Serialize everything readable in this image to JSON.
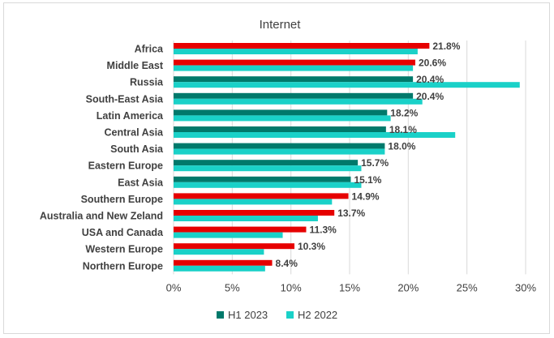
{
  "chart_data": {
    "type": "bar",
    "orientation": "horizontal",
    "title": "Internet",
    "categories": [
      "Africa",
      "Middle East",
      "Russia",
      "South-East Asia",
      "Latin America",
      "Central Asia",
      "South Asia",
      "Eastern Europe",
      "East Asia",
      "Southern Europe",
      "Australia and New Zeland",
      "USA and Canada",
      "Western Europe",
      "Northern Europe"
    ],
    "series": [
      {
        "name": "H1 2023",
        "values": [
          21.8,
          20.6,
          20.4,
          20.4,
          18.2,
          18.1,
          18.0,
          15.7,
          15.1,
          14.9,
          13.7,
          11.3,
          10.3,
          8.4
        ]
      },
      {
        "name": "H2 2022",
        "values": [
          20.8,
          20.4,
          29.5,
          21.2,
          18.5,
          24.0,
          18.0,
          16.0,
          16.0,
          13.5,
          12.3,
          9.3,
          7.7,
          7.8
        ]
      }
    ],
    "data_labels": [
      "21.8%",
      "20.6%",
      "20.4%",
      "20.4%",
      "18.2%",
      "18.1%",
      "18.0%",
      "15.7%",
      "15.1%",
      "14.9%",
      "13.7%",
      "11.3%",
      "10.3%",
      "8.4%"
    ],
    "xlim": [
      0,
      30
    ],
    "xticks": [
      "0%",
      "5%",
      "10%",
      "15%",
      "20%",
      "25%",
      "30%"
    ],
    "grid": "vertical",
    "legend": "bottom",
    "colors": {
      "h1_increase": "#e60000",
      "h1_decrease": "#00796b",
      "h2": "#1ad1c8",
      "grid": "#d9d9d9",
      "text": "#404040"
    },
    "h1_bar_color": [
      "red",
      "red",
      "teal",
      "teal",
      "teal",
      "teal",
      "teal",
      "teal",
      "teal",
      "red",
      "red",
      "red",
      "red",
      "red"
    ]
  }
}
